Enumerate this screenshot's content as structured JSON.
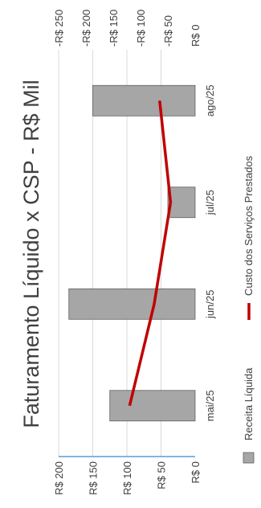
{
  "chart_data": {
    "type": "bar",
    "title": "Faturamento Líquido x CSP  - R$ Mil",
    "categories": [
      "mai/25",
      "jun/25",
      "jul/25",
      "ago/25"
    ],
    "bar_series": {
      "name": "Receita Líquida",
      "values": [
        125,
        185,
        40,
        150
      ],
      "axis_ticks": [
        "R$ 200",
        "R$ 150",
        "R$ 100",
        "R$ 50",
        "R$ 0"
      ],
      "ylim": [
        0,
        200
      ]
    },
    "line_series": {
      "name": "Custo dos Serviços Prestados",
      "values": [
        -120,
        -75,
        -45,
        -65
      ],
      "axis_ticks": [
        "R$ 0",
        "-R$ 50",
        "-R$ 100",
        "-R$ 150",
        "-R$ 200",
        "-R$ 250"
      ],
      "ylim": [
        -250,
        0
      ]
    },
    "colors": {
      "bar_fill": "#a6a6a6",
      "bar_stroke": "#595959",
      "line": "#c00000",
      "gridline": "#d9d9d9",
      "category_axis": "#5b9bd5"
    },
    "legend_position": "bottom",
    "grid": true
  }
}
